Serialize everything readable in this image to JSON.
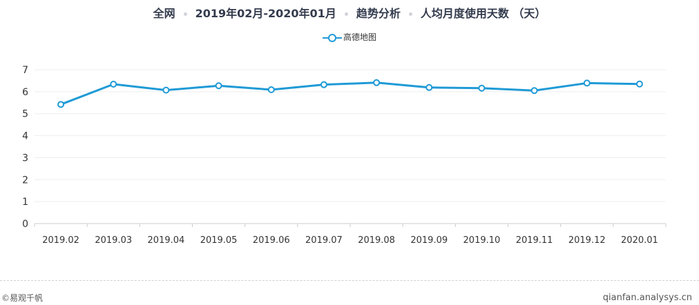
{
  "title": {
    "scope": "全网",
    "period": "2019年02月-2020年01月",
    "analysis": "趋势分析",
    "metric": "人均月度使用天数 （天）"
  },
  "legend": {
    "series_name": "高德地图"
  },
  "footer": {
    "copyright": "©易观千帆",
    "site": "qianfan.analysys.cn"
  },
  "colors": {
    "series": "#1f9ad6",
    "grid": "#eeeeee",
    "axis": "#cccccc"
  },
  "chart_data": {
    "type": "line",
    "categories": [
      "2019.02",
      "2019.03",
      "2019.04",
      "2019.05",
      "2019.06",
      "2019.07",
      "2019.08",
      "2019.09",
      "2019.10",
      "2019.11",
      "2019.12",
      "2020.01"
    ],
    "series": [
      {
        "name": "高德地图",
        "values": [
          5.42,
          6.34,
          6.07,
          6.27,
          6.09,
          6.32,
          6.41,
          6.19,
          6.16,
          6.05,
          6.39,
          6.35
        ]
      }
    ],
    "yticks": [
      0,
      1,
      2,
      3,
      4,
      5,
      6,
      7
    ],
    "ylim": [
      0,
      7
    ],
    "grid": true,
    "legend_position": "top-center"
  }
}
